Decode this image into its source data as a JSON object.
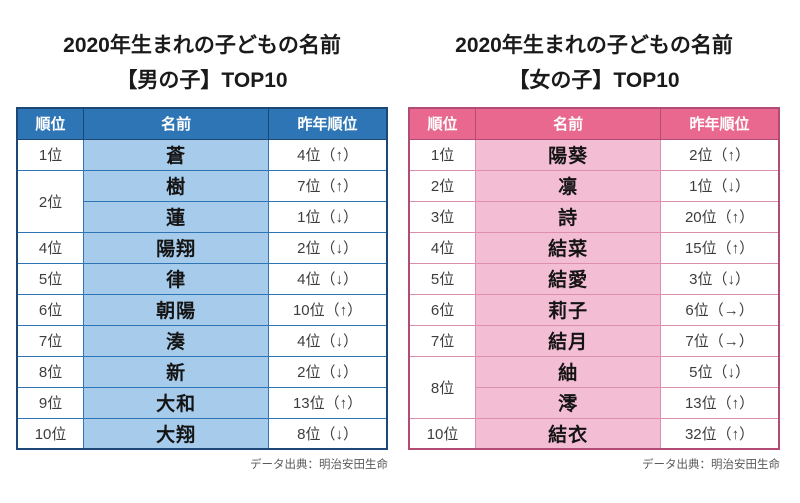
{
  "chart_data": [
    {
      "type": "table",
      "id": "boys",
      "title_line1": "2020年生まれの子どもの名前",
      "title_line2": "【男の子】TOP10",
      "columns": [
        "順位",
        "名前",
        "昨年順位"
      ],
      "rows": [
        {
          "rank": "1位",
          "rank_rowspan": 1,
          "name": "蒼",
          "prev_rank": "4位（↑）"
        },
        {
          "rank": "2位",
          "rank_rowspan": 2,
          "name": "樹",
          "prev_rank": "7位（↑）"
        },
        {
          "rank": null,
          "name": "蓮",
          "prev_rank": "1位（↓）"
        },
        {
          "rank": "4位",
          "rank_rowspan": 1,
          "name": "陽翔",
          "prev_rank": "2位（↓）"
        },
        {
          "rank": "5位",
          "rank_rowspan": 1,
          "name": "律",
          "prev_rank": "4位（↓）"
        },
        {
          "rank": "6位",
          "rank_rowspan": 1,
          "name": "朝陽",
          "prev_rank": "10位（↑）"
        },
        {
          "rank": "7位",
          "rank_rowspan": 1,
          "name": "湊",
          "prev_rank": "4位（↓）"
        },
        {
          "rank": "8位",
          "rank_rowspan": 1,
          "name": "新",
          "prev_rank": "2位（↓）"
        },
        {
          "rank": "9位",
          "rank_rowspan": 1,
          "name": "大和",
          "prev_rank": "13位（↑）"
        },
        {
          "rank": "10位",
          "rank_rowspan": 1,
          "name": "大翔",
          "prev_rank": "8位（↓）"
        }
      ],
      "colors": {
        "header_bg": "#2E75B6",
        "header_text": "#FFFFFF",
        "name_cell_bg": "#A7CBEB",
        "inner_border": "#2E75B6",
        "outer_border": "#1B4875"
      },
      "source_note": "データ出典：明治安田生命"
    },
    {
      "type": "table",
      "id": "girls",
      "title_line1": "2020年生まれの子どもの名前",
      "title_line2": "【女の子】TOP10",
      "columns": [
        "順位",
        "名前",
        "昨年順位"
      ],
      "rows": [
        {
          "rank": "1位",
          "rank_rowspan": 1,
          "name": "陽葵",
          "prev_rank": "2位（↑）"
        },
        {
          "rank": "2位",
          "rank_rowspan": 1,
          "name": "凛",
          "prev_rank": "1位（↓）"
        },
        {
          "rank": "3位",
          "rank_rowspan": 1,
          "name": "詩",
          "prev_rank": "20位（↑）"
        },
        {
          "rank": "4位",
          "rank_rowspan": 1,
          "name": "結菜",
          "prev_rank": "15位（↑）"
        },
        {
          "rank": "5位",
          "rank_rowspan": 1,
          "name": "結愛",
          "prev_rank": "3位（↓）"
        },
        {
          "rank": "6位",
          "rank_rowspan": 1,
          "name": "莉子",
          "prev_rank": "6位（→）"
        },
        {
          "rank": "7位",
          "rank_rowspan": 1,
          "name": "結月",
          "prev_rank": "7位（→）"
        },
        {
          "rank": "8位",
          "rank_rowspan": 2,
          "name": "紬",
          "prev_rank": "5位（↓）"
        },
        {
          "rank": null,
          "name": "澪",
          "prev_rank": "13位（↑）"
        },
        {
          "rank": "10位",
          "rank_rowspan": 1,
          "name": "結衣",
          "prev_rank": "32位（↑）"
        }
      ],
      "colors": {
        "header_bg": "#E8688F",
        "header_text": "#FFFFFF",
        "name_cell_bg": "#F3BDD3",
        "inner_border": "#DE8FAD",
        "outer_border": "#B34C75"
      },
      "source_note": "データ出典：明治安田生命"
    }
  ]
}
